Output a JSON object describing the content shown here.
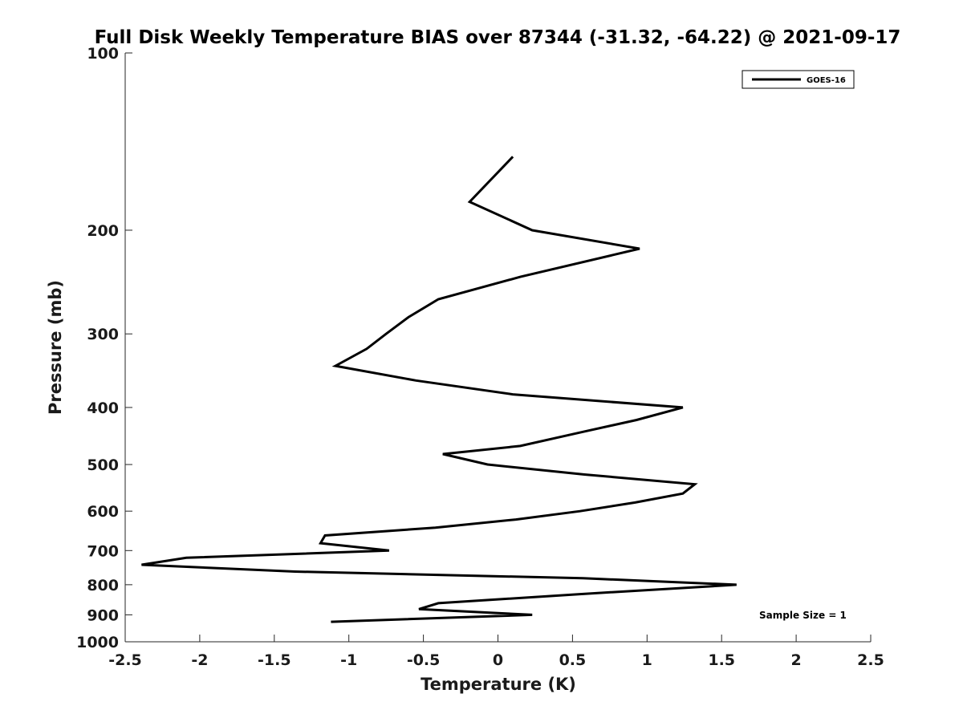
{
  "chart_data": {
    "type": "line",
    "title": "Full Disk Weekly Temperature BIAS over 87344 (-31.32, -64.22) @ 2021-09-17",
    "xlabel": "Temperature (K)",
    "ylabel": "Pressure (mb)",
    "xlim": [
      -2.5,
      2.5
    ],
    "ylim": [
      1000,
      100
    ],
    "yscale": "log",
    "x_ticks": [
      -2.5,
      -2,
      -1.5,
      -1,
      -0.5,
      0,
      0.5,
      1,
      1.5,
      2,
      2.5
    ],
    "x_tick_labels": [
      "-2.5",
      "-2",
      "-1.5",
      "-1",
      "-0.5",
      "0",
      "0.5",
      "1",
      "1.5",
      "2",
      "2.5"
    ],
    "y_ticks": [
      100,
      200,
      300,
      400,
      500,
      600,
      700,
      800,
      900,
      1000
    ],
    "y_tick_labels": [
      "100",
      "200",
      "300",
      "400",
      "500",
      "600",
      "700",
      "800",
      "900",
      "1000"
    ],
    "grid": false,
    "legend_position": "top-right",
    "annotation": "Sample Size = 1",
    "series": [
      {
        "name": "GOES-16",
        "color": "#000000",
        "points": [
          {
            "x": 0.1,
            "y": 150
          },
          {
            "x": -0.19,
            "y": 179
          },
          {
            "x": 0.23,
            "y": 200
          },
          {
            "x": 0.95,
            "y": 215
          },
          {
            "x": 0.15,
            "y": 240
          },
          {
            "x": -0.4,
            "y": 262
          },
          {
            "x": -0.6,
            "y": 281
          },
          {
            "x": -0.75,
            "y": 300
          },
          {
            "x": -0.88,
            "y": 318
          },
          {
            "x": -1.09,
            "y": 340
          },
          {
            "x": -0.55,
            "y": 360
          },
          {
            "x": 0.1,
            "y": 380
          },
          {
            "x": 1.24,
            "y": 400
          },
          {
            "x": 0.93,
            "y": 420
          },
          {
            "x": 0.57,
            "y": 440
          },
          {
            "x": 0.15,
            "y": 465
          },
          {
            "x": -0.37,
            "y": 480
          },
          {
            "x": -0.07,
            "y": 500
          },
          {
            "x": 0.58,
            "y": 520
          },
          {
            "x": 1.32,
            "y": 540
          },
          {
            "x": 1.24,
            "y": 560
          },
          {
            "x": 0.92,
            "y": 580
          },
          {
            "x": 0.55,
            "y": 600
          },
          {
            "x": 0.12,
            "y": 620
          },
          {
            "x": -0.42,
            "y": 640
          },
          {
            "x": -1.16,
            "y": 660
          },
          {
            "x": -1.19,
            "y": 680
          },
          {
            "x": -0.73,
            "y": 700
          },
          {
            "x": -2.09,
            "y": 720
          },
          {
            "x": -2.39,
            "y": 740
          },
          {
            "x": -1.36,
            "y": 760
          },
          {
            "x": 0.57,
            "y": 780
          },
          {
            "x": 1.6,
            "y": 800
          },
          {
            "x": 0.55,
            "y": 830
          },
          {
            "x": -0.4,
            "y": 860
          },
          {
            "x": -0.53,
            "y": 880
          },
          {
            "x": 0.23,
            "y": 900
          },
          {
            "x": -1.12,
            "y": 925
          }
        ]
      }
    ]
  }
}
